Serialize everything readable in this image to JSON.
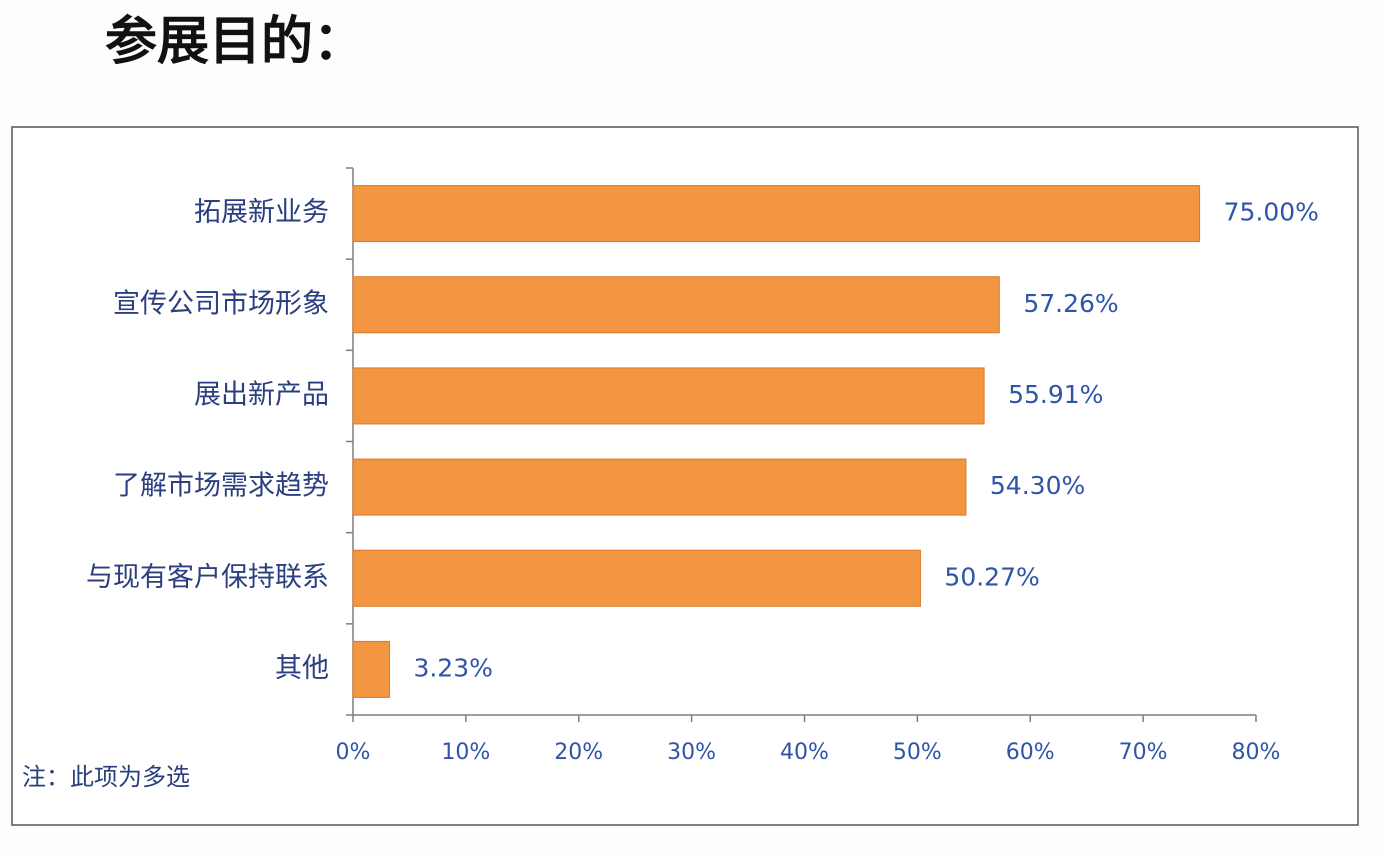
{
  "title": "参展目的：",
  "note": "注：此项为多选",
  "chart_data": {
    "type": "bar",
    "categories": [
      "拓展新业务",
      "宣传公司市场形象",
      "展出新产品",
      "了解市场需求趋势",
      "与现有客户保持联系",
      "其他"
    ],
    "values": [
      75.0,
      57.26,
      55.91,
      54.3,
      50.27,
      3.23
    ],
    "value_labels": [
      "75.00%",
      "57.26%",
      "55.91%",
      "54.30%",
      "50.27%",
      "3.23%"
    ],
    "color": "#f39641",
    "xlim": [
      0,
      80
    ],
    "xticks": [
      {
        "value": 0,
        "label": "0%"
      },
      {
        "value": 10,
        "label": "10%"
      },
      {
        "value": 20,
        "label": "20%"
      },
      {
        "value": 30,
        "label": "30%"
      },
      {
        "value": 40,
        "label": "40%"
      },
      {
        "value": 50,
        "label": "50%"
      },
      {
        "value": 60,
        "label": "60%"
      },
      {
        "value": 70,
        "label": "70%"
      },
      {
        "value": 80,
        "label": "80%"
      }
    ]
  }
}
